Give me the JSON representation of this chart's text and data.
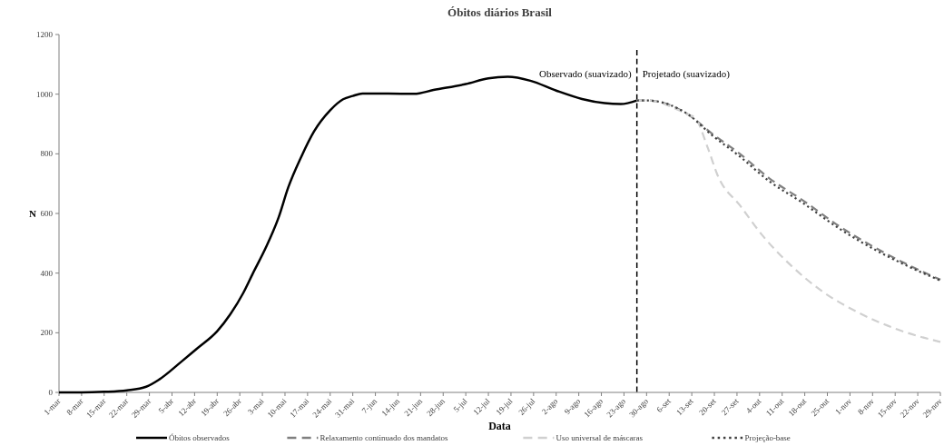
{
  "chart_data": {
    "type": "line",
    "title": "Óbitos diários Brasil",
    "xlabel": "Data",
    "ylabel": "N",
    "legend": "bottom",
    "grid": false,
    "marker": "none",
    "ylim": [
      0,
      1200
    ],
    "yticks": [
      0,
      200,
      400,
      600,
      800,
      1000,
      1200
    ],
    "xlim": [
      "--03-01",
      "--11-29"
    ],
    "xticks": [
      {
        "value": "--03-01",
        "label": "1-mar"
      },
      {
        "value": "--03-08",
        "label": "8-mar"
      },
      {
        "value": "--03-15",
        "label": "15-mar"
      },
      {
        "value": "--03-22",
        "label": "22-mar"
      },
      {
        "value": "--03-29",
        "label": "29-mar"
      },
      {
        "value": "--04-05",
        "label": "5-abr"
      },
      {
        "value": "--04-12",
        "label": "12-abr"
      },
      {
        "value": "--04-19",
        "label": "19-abr"
      },
      {
        "value": "--04-26",
        "label": "26-abr"
      },
      {
        "value": "--05-03",
        "label": "3-mai"
      },
      {
        "value": "--05-10",
        "label": "10-mai"
      },
      {
        "value": "--05-17",
        "label": "17-mai"
      },
      {
        "value": "--05-24",
        "label": "24-mai"
      },
      {
        "value": "--05-31",
        "label": "31-mai"
      },
      {
        "value": "--06-07",
        "label": "7-jun"
      },
      {
        "value": "--06-14",
        "label": "14-jun"
      },
      {
        "value": "--06-21",
        "label": "21-jun"
      },
      {
        "value": "--06-28",
        "label": "28-jun"
      },
      {
        "value": "--07-05",
        "label": "5-jul"
      },
      {
        "value": "--07-12",
        "label": "12-jul"
      },
      {
        "value": "--07-19",
        "label": "19-jul"
      },
      {
        "value": "--07-26",
        "label": "26-jul"
      },
      {
        "value": "--08-02",
        "label": "2-ago"
      },
      {
        "value": "--08-09",
        "label": "9-ago"
      },
      {
        "value": "--08-16",
        "label": "16-ago"
      },
      {
        "value": "--08-23",
        "label": "23-ago"
      },
      {
        "value": "--08-30",
        "label": "30-ago"
      },
      {
        "value": "--09-06",
        "label": "6-set"
      },
      {
        "value": "--09-13",
        "label": "13-set"
      },
      {
        "value": "--09-20",
        "label": "20-set"
      },
      {
        "value": "--09-27",
        "label": "27-set"
      },
      {
        "value": "--10-04",
        "label": "4-out"
      },
      {
        "value": "--10-11",
        "label": "11-out"
      },
      {
        "value": "--10-18",
        "label": "18-out"
      },
      {
        "value": "--10-25",
        "label": "25-out"
      },
      {
        "value": "--11-01",
        "label": "1-nov"
      },
      {
        "value": "--11-08",
        "label": "8-nov"
      },
      {
        "value": "--11-15",
        "label": "15-nov"
      },
      {
        "value": "--11-22",
        "label": "22-nov"
      },
      {
        "value": "--11-29",
        "label": "29-nov"
      }
    ],
    "ref_lines": [
      {
        "axis": "x",
        "value": "--08-27",
        "color": "#000000",
        "line_style": "dashed"
      }
    ],
    "annotations": [
      "Observado (suavizado)",
      "Projetado (suavizado)"
    ],
    "series": [
      {
        "name": "Óbitos observados",
        "color": "#000000",
        "line_style": "solid",
        "x": [
          "--03-01",
          "--03-08",
          "--03-15",
          "--03-22",
          "--03-28",
          "--04-01",
          "--04-08",
          "--04-13",
          "--04-19",
          "--04-23",
          "--04-27",
          "--04-30",
          "--05-04",
          "--05-08",
          "--05-11",
          "--05-15",
          "--05-19",
          "--05-24",
          "--05-28",
          "--05-31",
          "--06-03",
          "--06-11",
          "--06-19",
          "--06-25",
          "--07-05",
          "--07-12",
          "--07-18",
          "--07-25",
          "--08-02",
          "--08-10",
          "--08-17",
          "--08-22",
          "--08-27"
        ],
        "values": [
          0,
          0,
          2,
          7,
          19,
          43,
          104,
          149,
          205,
          261,
          332,
          398,
          484,
          586,
          687,
          789,
          875,
          946,
          983,
          994,
          1002,
          1002,
          1001,
          1014,
          1034,
          1053,
          1058,
          1045,
          1012,
          984,
          970,
          967,
          979
        ]
      },
      {
        "name": "Relaxamento continuado dos mandatos",
        "color": "#808080",
        "line_style": "dashed",
        "x": [
          "--08-27",
          "--08-30",
          "--09-12",
          "--09-19",
          "--09-28",
          "--10-07",
          "--10-17",
          "--10-29",
          "--11-09",
          "--11-18",
          "--11-29"
        ],
        "values": [
          979,
          979,
          931,
          870,
          799,
          718,
          647,
          555,
          484,
          433,
          378
        ]
      },
      {
        "name": "Uso universal de máscaras",
        "color": "#d0d0d0",
        "line_style": "dashed",
        "x": [
          "--08-27",
          "--08-30",
          "--09-12",
          "--09-14",
          "--09-18",
          "--09-21",
          "--09-28",
          "--10-05",
          "--10-14",
          "--10-23",
          "--11-03",
          "--11-16",
          "--11-29"
        ],
        "values": [
          979,
          979,
          931,
          921,
          819,
          728,
          626,
          525,
          423,
          342,
          271,
          210,
          169
        ]
      },
      {
        "name": "Projeção-base",
        "color": "#404040",
        "line_style": "dotted",
        "x": [
          "--08-27",
          "--08-30",
          "--09-12",
          "--09-19",
          "--09-28",
          "--10-07",
          "--10-17",
          "--10-29",
          "--11-09",
          "--11-18",
          "--11-29"
        ],
        "values": [
          979,
          979,
          931,
          865,
          790,
          708,
          638,
          547,
          477,
          428,
          375
        ]
      }
    ]
  }
}
